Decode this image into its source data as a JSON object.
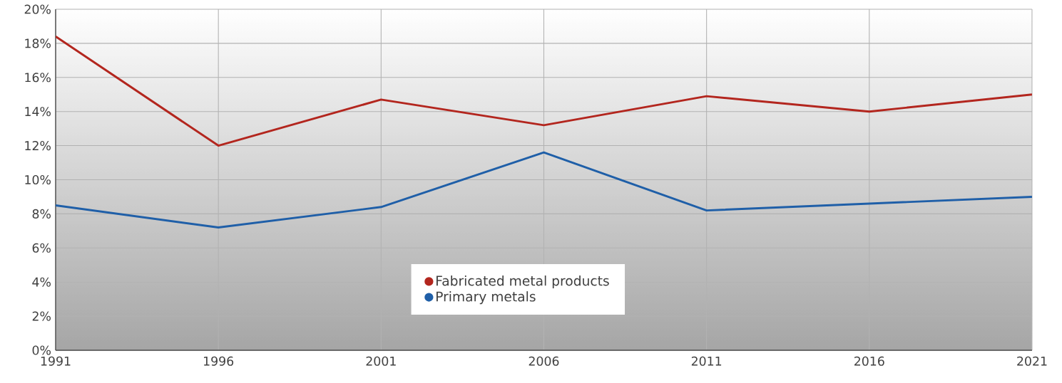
{
  "chart_data": {
    "type": "line",
    "x": [
      1991,
      1996,
      2001,
      2006,
      2011,
      2016,
      2021
    ],
    "series": [
      {
        "name": "Fabricated metal products",
        "color": "#b3261e",
        "values": [
          18.4,
          12.0,
          14.7,
          13.2,
          14.9,
          14.0,
          15.0
        ]
      },
      {
        "name": "Primary metals",
        "color": "#1f5fa8",
        "values": [
          8.5,
          7.2,
          8.4,
          11.6,
          8.2,
          8.6,
          9.0
        ]
      }
    ],
    "xlim": [
      1991,
      2021
    ],
    "xticks": [
      1991,
      1996,
      2001,
      2006,
      2011,
      2016,
      2021
    ],
    "ylim": [
      0,
      20
    ],
    "yticks": [
      {
        "value": 0,
        "label": "0%"
      },
      {
        "value": 2,
        "label": "2%"
      },
      {
        "value": 4,
        "label": "4%"
      },
      {
        "value": 6,
        "label": "6%"
      },
      {
        "value": 8,
        "label": "8%"
      },
      {
        "value": 10,
        "label": "10%"
      },
      {
        "value": 12,
        "label": "12%"
      },
      {
        "value": 14,
        "label": "14%"
      },
      {
        "value": 16,
        "label": "16%"
      },
      {
        "value": 18,
        "label": "18%"
      },
      {
        "value": 20,
        "label": "20%"
      }
    ],
    "grid": true,
    "legend": "bottom"
  }
}
